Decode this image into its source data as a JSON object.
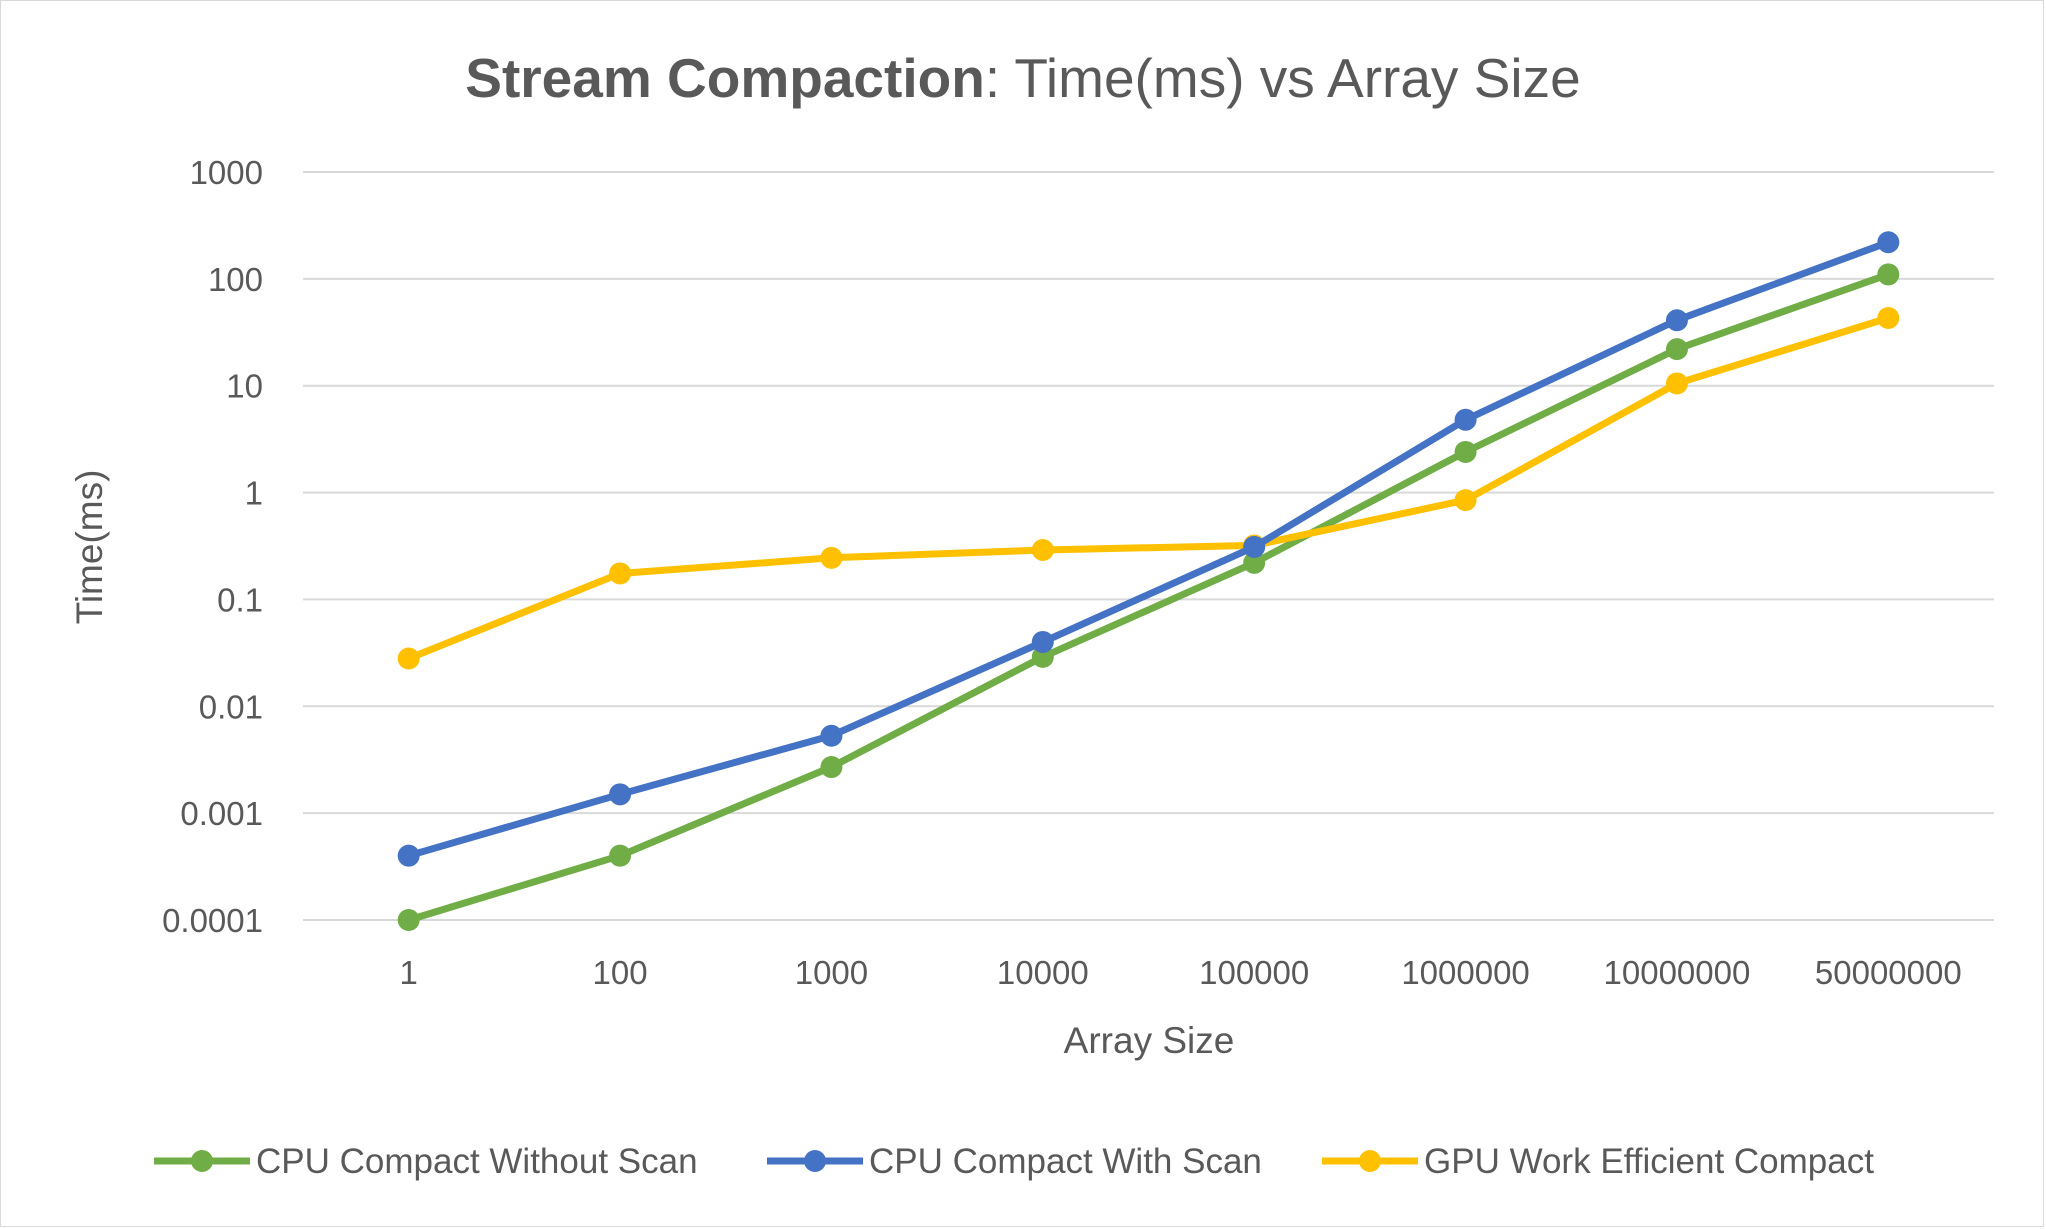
{
  "chart_data": {
    "type": "line",
    "title_bold": "Stream Compaction",
    "title_rest": ": Time(ms) vs Array Size",
    "xlabel": "Array Size",
    "ylabel": "Time(ms)",
    "categories": [
      "1",
      "100",
      "1000",
      "10000",
      "100000",
      "1000000",
      "10000000",
      "50000000"
    ],
    "y_scale": "log",
    "ylim": [
      0.0001,
      1000
    ],
    "y_ticks": [
      {
        "value": 1000,
        "label": "1000"
      },
      {
        "value": 100,
        "label": "100"
      },
      {
        "value": 10,
        "label": "10"
      },
      {
        "value": 1,
        "label": "1"
      },
      {
        "value": 0.1,
        "label": "0.1"
      },
      {
        "value": 0.01,
        "label": "0.01"
      },
      {
        "value": 0.001,
        "label": "0.001"
      },
      {
        "value": 0.0001,
        "label": "0.0001"
      }
    ],
    "grid": "horizontal",
    "legend_position": "bottom",
    "series": [
      {
        "name": "CPU Compact Without Scan",
        "color": "#70ad47",
        "values": [
          0.0001,
          0.0004,
          0.0027,
          0.029,
          0.22,
          2.4,
          22,
          110
        ]
      },
      {
        "name": "CPU Compact With Scan",
        "color": "#4472c4",
        "values": [
          0.0004,
          0.0015,
          0.0053,
          0.04,
          0.31,
          4.8,
          41,
          220
        ]
      },
      {
        "name": "GPU Work Efficient Compact",
        "color": "#ffc000",
        "values": [
          0.028,
          0.175,
          0.245,
          0.29,
          0.32,
          0.85,
          10.5,
          43
        ]
      }
    ]
  }
}
